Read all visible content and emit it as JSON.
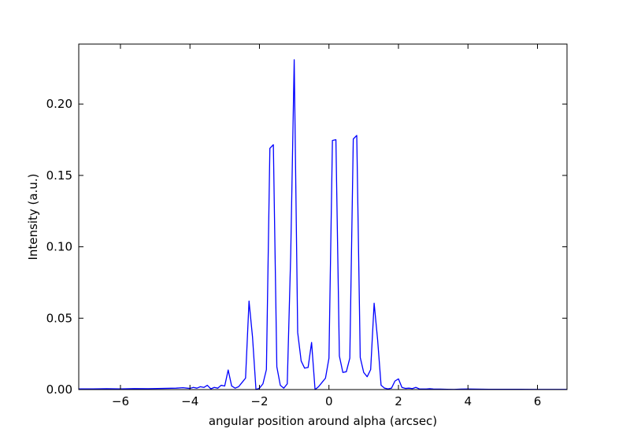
{
  "chart_data": {
    "type": "line",
    "xlabel": "angular position around alpha (arcsec)",
    "ylabel": "Intensity (a.u.)",
    "xlim": [
      -7.2,
      6.85
    ],
    "ylim": [
      0.0,
      0.242
    ],
    "xticks": [
      -6,
      -4,
      -2,
      0,
      2,
      4,
      6
    ],
    "xtick_labels": [
      "−6",
      "−4",
      "−2",
      "0",
      "2",
      "4",
      "6"
    ],
    "yticks": [
      0.0,
      0.05,
      0.1,
      0.15,
      0.2
    ],
    "ytick_labels": [
      "0.00",
      "0.05",
      "0.10",
      "0.15",
      "0.20"
    ],
    "grid": false,
    "line_color": "#0000ff",
    "series": [
      {
        "x": [
          -7.2,
          -6.8,
          -6.4,
          -6.0,
          -5.6,
          -5.2,
          -4.8,
          -4.4,
          -4.2,
          -4.0,
          -3.9,
          -3.8,
          -3.7,
          -3.6,
          -3.5,
          -3.4,
          -3.3,
          -3.2,
          -3.1,
          -3.0,
          -2.9,
          -2.8,
          -2.7,
          -2.6,
          -2.5,
          -2.4,
          -2.3,
          -2.2,
          -2.1,
          -2.0,
          -1.9,
          -1.8,
          -1.7,
          -1.6,
          -1.5,
          -1.4,
          -1.3,
          -1.2,
          -1.1,
          -1.0,
          -0.9,
          -0.8,
          -0.7,
          -0.6,
          -0.5,
          -0.4,
          -0.3,
          -0.2,
          -0.1,
          0.0,
          0.1,
          0.2,
          0.3,
          0.4,
          0.5,
          0.6,
          0.7,
          0.8,
          0.9,
          1.0,
          1.1,
          1.2,
          1.3,
          1.4,
          1.5,
          1.6,
          1.7,
          1.8,
          1.9,
          2.0,
          2.1,
          2.2,
          2.3,
          2.4,
          2.5,
          2.6,
          2.7,
          2.8,
          2.9,
          3.0,
          3.2,
          3.4,
          3.6,
          3.8,
          4.0,
          4.2,
          4.6,
          5.0,
          5.5,
          6.0,
          6.5,
          6.85
        ],
        "y": [
          0.0005,
          0.0005,
          0.0006,
          0.0005,
          0.0007,
          0.0006,
          0.0008,
          0.001,
          0.0013,
          0.0008,
          0.0015,
          0.001,
          0.002,
          0.0015,
          0.003,
          0.0005,
          0.0015,
          0.001,
          0.003,
          0.0025,
          0.0137,
          0.0025,
          0.001,
          0.002,
          0.005,
          0.008,
          0.062,
          0.037,
          0.0,
          0.001,
          0.004,
          0.014,
          0.169,
          0.1715,
          0.016,
          0.003,
          0.001,
          0.004,
          0.095,
          0.231,
          0.04,
          0.02,
          0.015,
          0.0155,
          0.033,
          0.0,
          0.002,
          0.005,
          0.008,
          0.022,
          0.1745,
          0.175,
          0.0235,
          0.012,
          0.0125,
          0.022,
          0.1755,
          0.178,
          0.0225,
          0.012,
          0.009,
          0.014,
          0.0605,
          0.035,
          0.003,
          0.001,
          0.0005,
          0.001,
          0.006,
          0.0075,
          0.0015,
          0.0008,
          0.001,
          0.0007,
          0.0015,
          0.0005,
          0.0004,
          0.0004,
          0.0006,
          0.0004,
          0.0003,
          0.0002,
          0.0001,
          0.0003,
          0.0004,
          0.0003,
          0.0002,
          0.0002,
          0.0002,
          0.0001,
          0.0001,
          0.0001
        ]
      }
    ]
  }
}
